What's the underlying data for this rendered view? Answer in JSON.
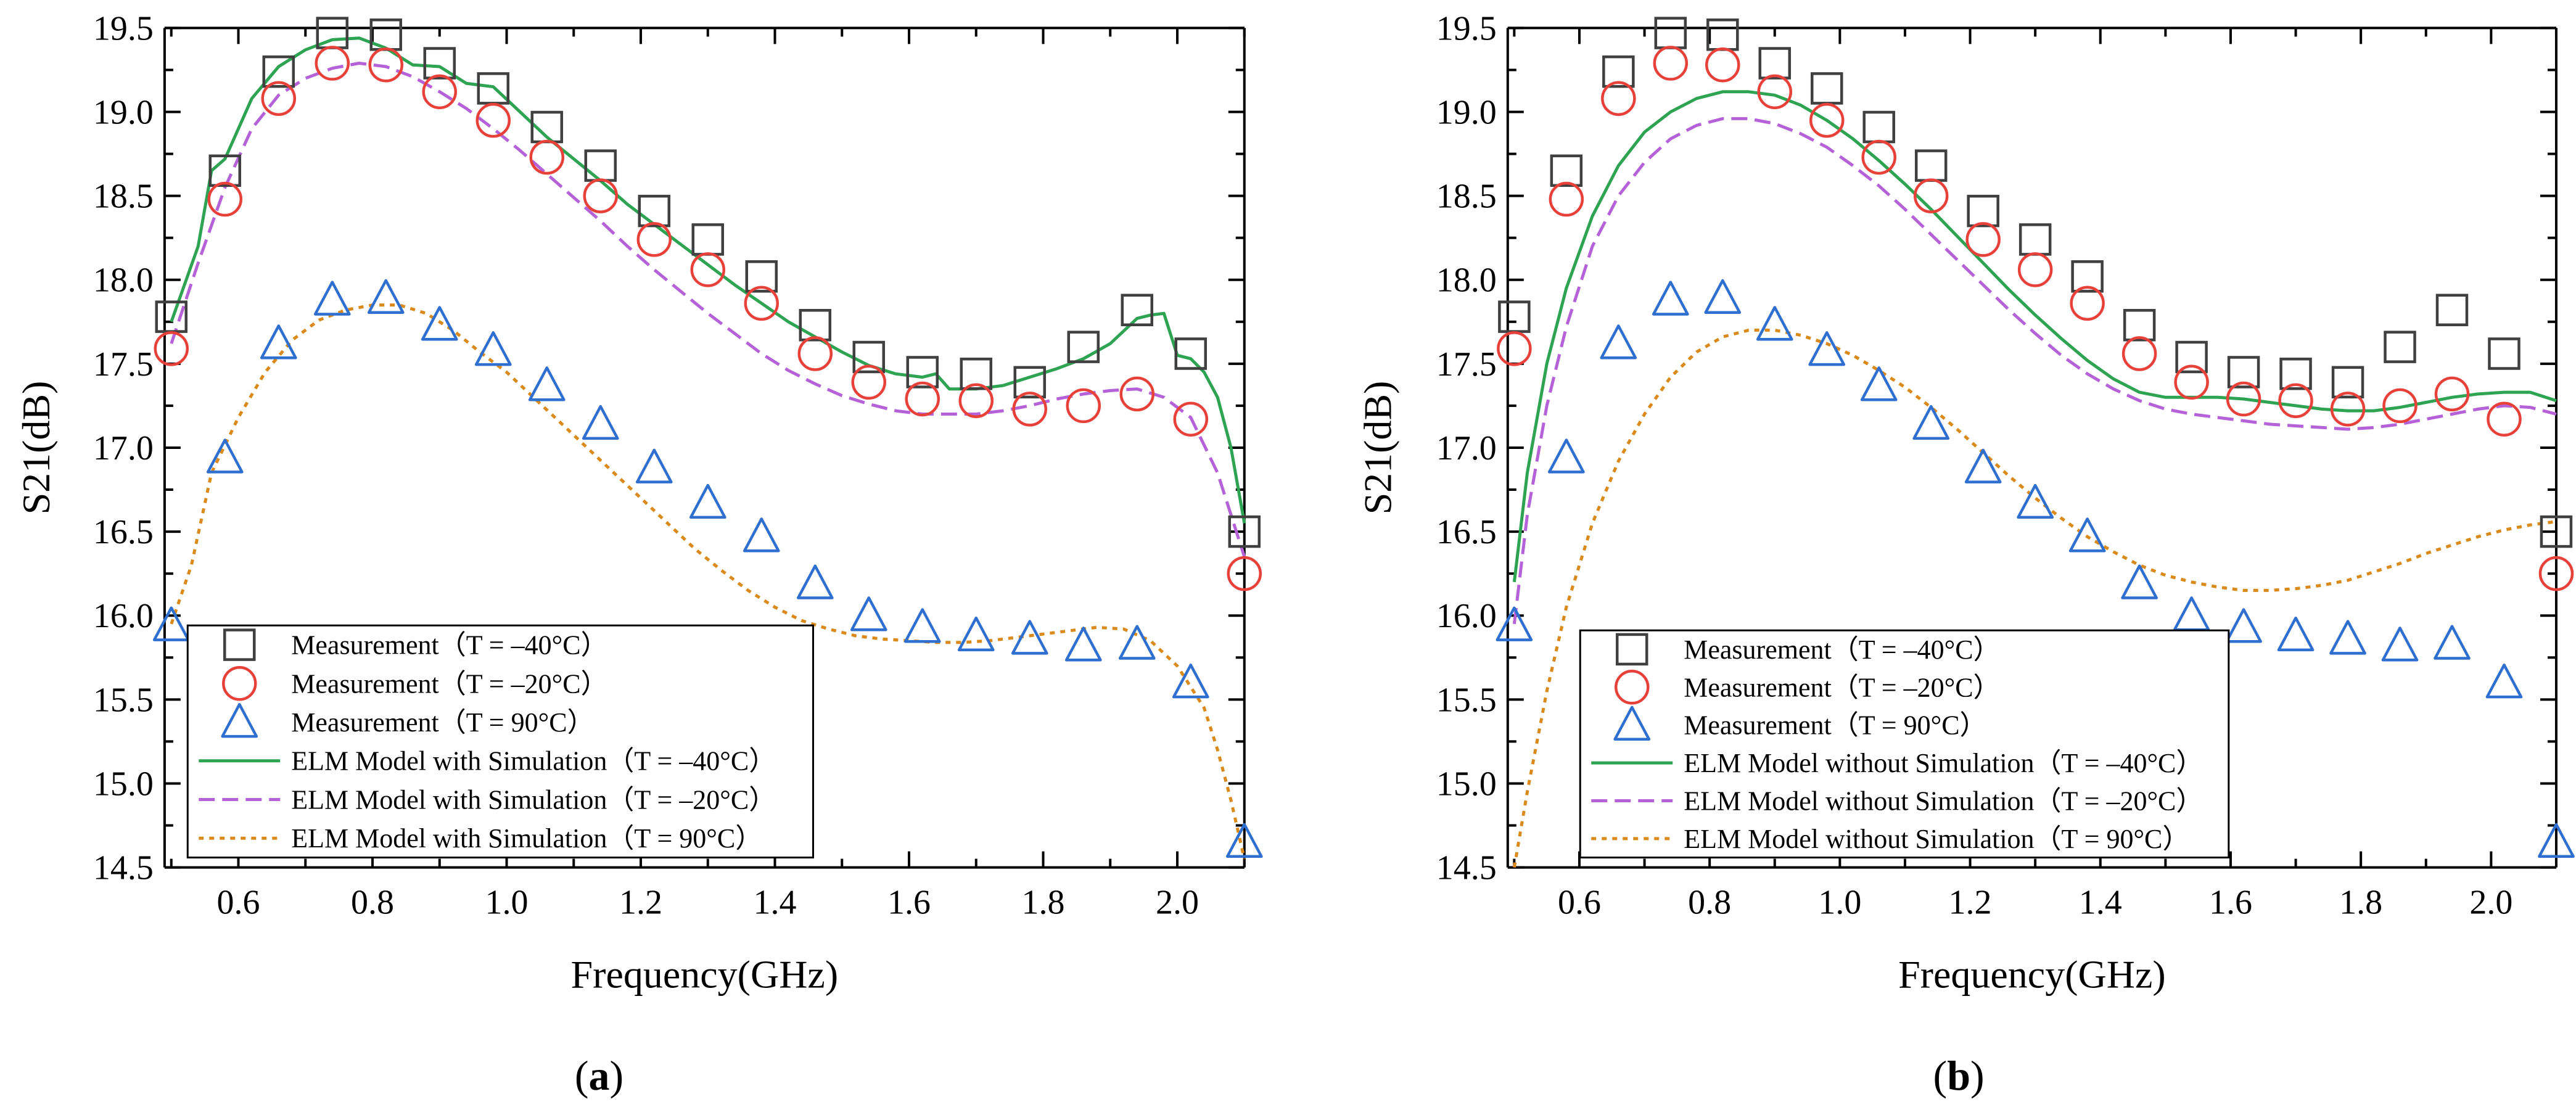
{
  "chart_data": [
    {
      "type": "line",
      "panel_label": "a",
      "xlabel": "Frequency(GHz)",
      "ylabel": "S21(dB)",
      "xlim": [
        0.49,
        2.1
      ],
      "ylim": [
        14.5,
        19.5
      ],
      "xticks": [
        0.6,
        0.8,
        1.0,
        1.2,
        1.4,
        1.6,
        1.8,
        2.0
      ],
      "xtick_labels": [
        "0.6",
        "0.8",
        "1.0",
        "1.2",
        "1.4",
        "1.6",
        "1.8",
        "2.0"
      ],
      "yticks": [
        14.5,
        15.0,
        15.5,
        16.0,
        16.5,
        17.0,
        17.5,
        18.0,
        18.5,
        19.0,
        19.5
      ],
      "ytick_labels": [
        "14.5",
        "15.0",
        "15.5",
        "16.0",
        "16.5",
        "17.0",
        "17.5",
        "18.0",
        "18.5",
        "19.0",
        "19.5"
      ],
      "legend_position": "bottom-left",
      "series": [
        {
          "name": "Measurement（T = –40°C）",
          "kind": "marker",
          "marker": "square",
          "color": "#404040",
          "x": [
            0.5,
            0.58,
            0.66,
            0.74,
            0.82,
            0.9,
            0.98,
            1.06,
            1.14,
            1.22,
            1.3,
            1.38,
            1.46,
            1.54,
            1.62,
            1.7,
            1.78,
            1.86,
            1.94,
            2.02,
            2.1
          ],
          "y": [
            17.78,
            18.65,
            19.24,
            19.47,
            19.46,
            19.29,
            19.14,
            18.91,
            18.68,
            18.41,
            18.24,
            18.02,
            17.73,
            17.54,
            17.45,
            17.44,
            17.39,
            17.6,
            17.82,
            17.56,
            16.5
          ]
        },
        {
          "name": "Measurement（T = –20°C）",
          "kind": "marker",
          "marker": "circle",
          "color": "#e8413a",
          "x": [
            0.5,
            0.58,
            0.66,
            0.74,
            0.82,
            0.9,
            0.98,
            1.06,
            1.14,
            1.22,
            1.3,
            1.38,
            1.46,
            1.54,
            1.62,
            1.7,
            1.78,
            1.86,
            1.94,
            2.02,
            2.1
          ],
          "y": [
            17.59,
            18.48,
            19.08,
            19.29,
            19.28,
            19.12,
            18.95,
            18.73,
            18.5,
            18.24,
            18.06,
            17.86,
            17.56,
            17.39,
            17.29,
            17.28,
            17.23,
            17.25,
            17.32,
            17.17,
            16.25
          ]
        },
        {
          "name": "Measurement（T = 90°C）",
          "kind": "marker",
          "marker": "triangle",
          "color": "#2f6fd0",
          "x": [
            0.5,
            0.58,
            0.66,
            0.74,
            0.82,
            0.9,
            0.98,
            1.06,
            1.14,
            1.22,
            1.3,
            1.38,
            1.46,
            1.54,
            1.62,
            1.7,
            1.78,
            1.86,
            1.94,
            2.02,
            2.1
          ],
          "y": [
            15.94,
            16.94,
            17.62,
            17.88,
            17.89,
            17.73,
            17.58,
            17.37,
            17.14,
            16.88,
            16.67,
            16.47,
            16.19,
            16.0,
            15.93,
            15.88,
            15.86,
            15.82,
            15.83,
            15.6,
            14.65
          ]
        },
        {
          "name": "ELM Model with Simulation（T = –40°C）",
          "kind": "line",
          "dash": "solid",
          "color": "#2ea352",
          "x": [
            0.5,
            0.54,
            0.56,
            0.58,
            0.62,
            0.66,
            0.7,
            0.74,
            0.78,
            0.82,
            0.86,
            0.9,
            0.94,
            0.98,
            1.02,
            1.06,
            1.1,
            1.14,
            1.18,
            1.22,
            1.26,
            1.3,
            1.34,
            1.38,
            1.42,
            1.46,
            1.5,
            1.54,
            1.58,
            1.62,
            1.64,
            1.66,
            1.7,
            1.74,
            1.78,
            1.82,
            1.86,
            1.9,
            1.94,
            1.96,
            1.98,
            2.0,
            2.02,
            2.04,
            2.06,
            2.08,
            2.1
          ],
          "y": [
            17.75,
            18.2,
            18.65,
            18.72,
            19.08,
            19.27,
            19.37,
            19.43,
            19.44,
            19.38,
            19.28,
            19.27,
            19.17,
            19.15,
            19.0,
            18.85,
            18.72,
            18.59,
            18.45,
            18.33,
            18.21,
            18.09,
            17.97,
            17.86,
            17.75,
            17.66,
            17.57,
            17.49,
            17.44,
            17.42,
            17.44,
            17.35,
            17.35,
            17.37,
            17.42,
            17.47,
            17.53,
            17.62,
            17.77,
            17.79,
            17.8,
            17.55,
            17.53,
            17.45,
            17.3,
            17.0,
            16.55
          ]
        },
        {
          "name": "ELM Model with Simulation（T = –20°C）",
          "kind": "line",
          "dash": "dashed",
          "color": "#b562d8",
          "x": [
            0.5,
            0.54,
            0.58,
            0.62,
            0.66,
            0.7,
            0.74,
            0.78,
            0.82,
            0.86,
            0.9,
            0.94,
            0.98,
            1.02,
            1.06,
            1.1,
            1.14,
            1.18,
            1.22,
            1.26,
            1.3,
            1.34,
            1.38,
            1.42,
            1.46,
            1.5,
            1.54,
            1.58,
            1.62,
            1.66,
            1.7,
            1.74,
            1.78,
            1.82,
            1.86,
            1.9,
            1.94,
            1.98,
            2.02,
            2.06,
            2.1
          ],
          "y": [
            17.62,
            18.1,
            18.55,
            18.9,
            19.1,
            19.2,
            19.26,
            19.29,
            19.27,
            19.21,
            19.12,
            19.02,
            18.9,
            18.77,
            18.63,
            18.49,
            18.35,
            18.2,
            18.06,
            17.93,
            17.8,
            17.68,
            17.56,
            17.46,
            17.38,
            17.31,
            17.26,
            17.22,
            17.2,
            17.2,
            17.2,
            17.22,
            17.25,
            17.29,
            17.32,
            17.34,
            17.35,
            17.3,
            17.18,
            16.85,
            16.35
          ]
        },
        {
          "name": "ELM Model with Simulation（T = 90°C）",
          "kind": "line",
          "dash": "dotted",
          "color": "#d98a1a",
          "x": [
            0.5,
            0.53,
            0.56,
            0.6,
            0.64,
            0.68,
            0.72,
            0.76,
            0.8,
            0.84,
            0.88,
            0.92,
            0.96,
            1.0,
            1.04,
            1.08,
            1.12,
            1.16,
            1.2,
            1.24,
            1.28,
            1.32,
            1.36,
            1.4,
            1.44,
            1.48,
            1.52,
            1.56,
            1.6,
            1.64,
            1.68,
            1.72,
            1.76,
            1.8,
            1.84,
            1.88,
            1.92,
            1.96,
            2.0,
            2.04,
            2.06,
            2.08,
            2.1
          ],
          "y": [
            15.95,
            16.3,
            16.85,
            17.18,
            17.45,
            17.64,
            17.76,
            17.82,
            17.85,
            17.85,
            17.8,
            17.7,
            17.57,
            17.45,
            17.3,
            17.15,
            17.0,
            16.85,
            16.7,
            16.55,
            16.4,
            16.27,
            16.15,
            16.05,
            15.97,
            15.92,
            15.88,
            15.86,
            15.85,
            15.84,
            15.84,
            15.85,
            15.87,
            15.89,
            15.91,
            15.93,
            15.92,
            15.85,
            15.7,
            15.45,
            15.2,
            14.9,
            14.55
          ]
        }
      ]
    },
    {
      "type": "line",
      "panel_label": "b",
      "xlabel": "Frequency(GHz)",
      "ylabel": "S21(dB)",
      "xlim": [
        0.49,
        2.1
      ],
      "ylim": [
        14.5,
        19.5
      ],
      "xticks": [
        0.6,
        0.8,
        1.0,
        1.2,
        1.4,
        1.6,
        1.8,
        2.0
      ],
      "xtick_labels": [
        "0.6",
        "0.8",
        "1.0",
        "1.2",
        "1.4",
        "1.6",
        "1.8",
        "2.0"
      ],
      "yticks": [
        14.5,
        15.0,
        15.5,
        16.0,
        16.5,
        17.0,
        17.5,
        18.0,
        18.5,
        19.0,
        19.5
      ],
      "ytick_labels": [
        "14.5",
        "15.0",
        "15.5",
        "16.0",
        "16.5",
        "17.0",
        "17.5",
        "18.0",
        "18.5",
        "19.0",
        "19.5"
      ],
      "legend_position": "bottom-left",
      "series": [
        {
          "name": "Measurement（T = –40°C）",
          "kind": "marker",
          "marker": "square",
          "color": "#404040",
          "x": [
            0.5,
            0.58,
            0.66,
            0.74,
            0.82,
            0.9,
            0.98,
            1.06,
            1.14,
            1.22,
            1.3,
            1.38,
            1.46,
            1.54,
            1.62,
            1.7,
            1.78,
            1.86,
            1.94,
            2.02,
            2.1
          ],
          "y": [
            17.78,
            18.65,
            19.24,
            19.47,
            19.46,
            19.29,
            19.14,
            18.91,
            18.68,
            18.41,
            18.24,
            18.02,
            17.73,
            17.54,
            17.45,
            17.44,
            17.39,
            17.6,
            17.82,
            17.56,
            16.5
          ]
        },
        {
          "name": "Measurement（T = –20°C）",
          "kind": "marker",
          "marker": "circle",
          "color": "#e8413a",
          "x": [
            0.5,
            0.58,
            0.66,
            0.74,
            0.82,
            0.9,
            0.98,
            1.06,
            1.14,
            1.22,
            1.3,
            1.38,
            1.46,
            1.54,
            1.62,
            1.7,
            1.78,
            1.86,
            1.94,
            2.02,
            2.1
          ],
          "y": [
            17.59,
            18.48,
            19.08,
            19.29,
            19.28,
            19.12,
            18.95,
            18.73,
            18.5,
            18.24,
            18.06,
            17.86,
            17.56,
            17.39,
            17.29,
            17.28,
            17.23,
            17.25,
            17.32,
            17.17,
            16.25
          ]
        },
        {
          "name": "Measurement（T = 90°C）",
          "kind": "marker",
          "marker": "triangle",
          "color": "#2f6fd0",
          "x": [
            0.5,
            0.58,
            0.66,
            0.74,
            0.82,
            0.9,
            0.98,
            1.06,
            1.14,
            1.22,
            1.3,
            1.38,
            1.46,
            1.54,
            1.62,
            1.7,
            1.78,
            1.86,
            1.94,
            2.02,
            2.1
          ],
          "y": [
            15.94,
            16.94,
            17.62,
            17.88,
            17.89,
            17.73,
            17.58,
            17.37,
            17.14,
            16.88,
            16.67,
            16.47,
            16.19,
            16.0,
            15.93,
            15.88,
            15.86,
            15.82,
            15.83,
            15.6,
            14.65
          ]
        },
        {
          "name": "ELM Model without Simulation（T = –40°C）",
          "kind": "line",
          "dash": "solid",
          "color": "#2ea352",
          "x": [
            0.5,
            0.52,
            0.55,
            0.58,
            0.62,
            0.66,
            0.7,
            0.74,
            0.78,
            0.82,
            0.86,
            0.9,
            0.94,
            0.98,
            1.02,
            1.06,
            1.1,
            1.14,
            1.18,
            1.22,
            1.26,
            1.3,
            1.34,
            1.38,
            1.42,
            1.46,
            1.5,
            1.54,
            1.58,
            1.62,
            1.66,
            1.7,
            1.74,
            1.78,
            1.82,
            1.86,
            1.9,
            1.94,
            1.98,
            2.02,
            2.06,
            2.1
          ],
          "y": [
            16.2,
            16.85,
            17.5,
            17.95,
            18.38,
            18.68,
            18.88,
            19.0,
            19.08,
            19.12,
            19.12,
            19.1,
            19.04,
            18.95,
            18.84,
            18.71,
            18.57,
            18.42,
            18.26,
            18.1,
            17.94,
            17.79,
            17.65,
            17.52,
            17.41,
            17.33,
            17.3,
            17.3,
            17.3,
            17.29,
            17.27,
            17.25,
            17.23,
            17.22,
            17.22,
            17.24,
            17.27,
            17.3,
            17.32,
            17.33,
            17.33,
            17.28
          ]
        },
        {
          "name": "ELM Model without Simulation（T = –20°C）",
          "kind": "line",
          "dash": "dashed",
          "color": "#b562d8",
          "x": [
            0.5,
            0.52,
            0.55,
            0.58,
            0.62,
            0.66,
            0.7,
            0.74,
            0.78,
            0.82,
            0.86,
            0.9,
            0.94,
            0.98,
            1.02,
            1.06,
            1.1,
            1.14,
            1.18,
            1.22,
            1.26,
            1.3,
            1.34,
            1.38,
            1.42,
            1.46,
            1.5,
            1.54,
            1.58,
            1.62,
            1.66,
            1.7,
            1.74,
            1.78,
            1.82,
            1.86,
            1.9,
            1.94,
            1.98,
            2.02,
            2.06,
            2.1
          ],
          "y": [
            15.95,
            16.6,
            17.25,
            17.72,
            18.2,
            18.5,
            18.7,
            18.84,
            18.92,
            18.96,
            18.96,
            18.93,
            18.87,
            18.79,
            18.68,
            18.56,
            18.42,
            18.27,
            18.12,
            17.97,
            17.82,
            17.68,
            17.55,
            17.44,
            17.35,
            17.28,
            17.23,
            17.2,
            17.18,
            17.16,
            17.14,
            17.13,
            17.12,
            17.11,
            17.12,
            17.14,
            17.17,
            17.2,
            17.23,
            17.25,
            17.24,
            17.2
          ]
        },
        {
          "name": "ELM Model without Simulation（T = 90°C）",
          "kind": "line",
          "dash": "dotted",
          "color": "#d98a1a",
          "x": [
            0.5,
            0.52,
            0.55,
            0.58,
            0.62,
            0.66,
            0.7,
            0.74,
            0.78,
            0.82,
            0.86,
            0.9,
            0.94,
            0.98,
            1.02,
            1.06,
            1.1,
            1.14,
            1.18,
            1.22,
            1.26,
            1.3,
            1.34,
            1.38,
            1.42,
            1.46,
            1.5,
            1.54,
            1.58,
            1.62,
            1.66,
            1.7,
            1.74,
            1.78,
            1.82,
            1.86,
            1.9,
            1.94,
            1.98,
            2.02,
            2.06,
            2.1
          ],
          "y": [
            14.5,
            14.95,
            15.55,
            16.05,
            16.55,
            16.92,
            17.2,
            17.42,
            17.57,
            17.66,
            17.7,
            17.7,
            17.67,
            17.62,
            17.55,
            17.46,
            17.36,
            17.24,
            17.11,
            16.97,
            16.83,
            16.7,
            16.58,
            16.47,
            16.38,
            16.3,
            16.24,
            16.2,
            16.17,
            16.15,
            16.15,
            16.16,
            16.18,
            16.21,
            16.26,
            16.31,
            16.37,
            16.42,
            16.47,
            16.51,
            16.54,
            16.56
          ]
        }
      ]
    }
  ]
}
